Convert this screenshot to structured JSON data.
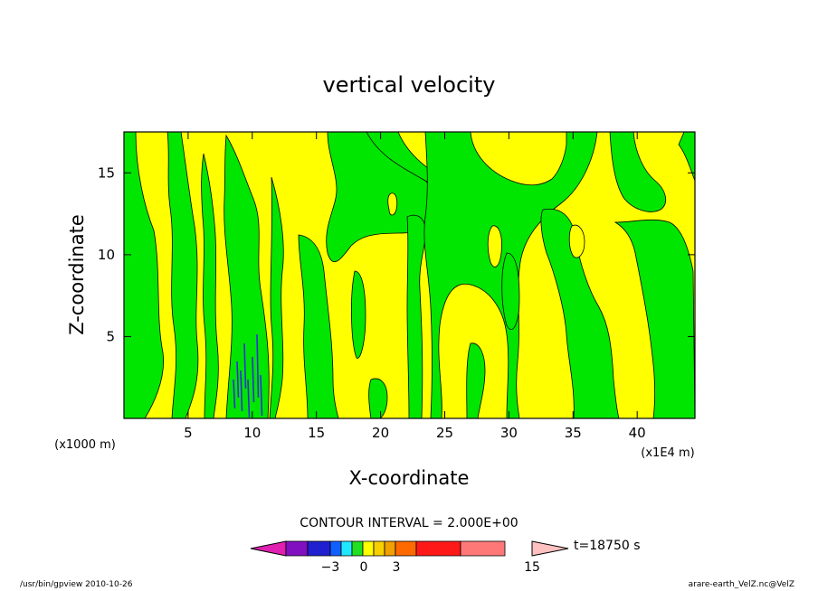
{
  "chart_data": {
    "type": "heatmap",
    "title": "vertical velocity",
    "xlabel": "X-coordinate",
    "ylabel": "Z-coordinate",
    "x_unit": "(x1E4 m)",
    "y_unit": "(x1000 m)",
    "xlim": [
      0,
      44.5
    ],
    "ylim": [
      0,
      17.5
    ],
    "x_ticks": [
      5,
      10,
      15,
      20,
      25,
      30,
      35,
      40
    ],
    "y_ticks": [
      5,
      10,
      15
    ],
    "x_tick_labels": [
      "5",
      "10",
      "15",
      "20",
      "25",
      "30",
      "35",
      "40"
    ],
    "y_tick_labels": [
      "5",
      "10",
      "15"
    ],
    "contour_interval_text": "CONTOUR INTERVAL = 2.000E+00",
    "time_label": "t=18750 s",
    "colorbar_tick_labels": [
      "−3",
      "0",
      "3",
      "15"
    ],
    "colorbar_tick_values": [
      -3,
      0,
      3,
      15
    ],
    "colorbar_levels": [
      -5,
      -4,
      -3,
      -2,
      -1,
      0,
      1,
      2,
      3,
      5,
      7,
      9,
      11
    ],
    "colorbar_colors": [
      "#e020b0",
      "#8010c0",
      "#2020d0",
      "#1060ff",
      "#20e8ff",
      "#20e020",
      "#ffff00",
      "#f8d000",
      "#f0a000",
      "#ff6a00",
      "#ff1818",
      "#ff7878",
      "#ffc0c0"
    ],
    "field_colors": {
      "negative": "#00e600",
      "positive": "#ffff00",
      "strong_negative": "#3030d0"
    },
    "green_regions_description": "alternating vertical bands of weak downward (green) and weak upward (yellow) motion",
    "footer_left": "/usr/bin/gpview   2010-10-26",
    "footer_right": "arare-earth_VelZ.nc@VelZ"
  }
}
